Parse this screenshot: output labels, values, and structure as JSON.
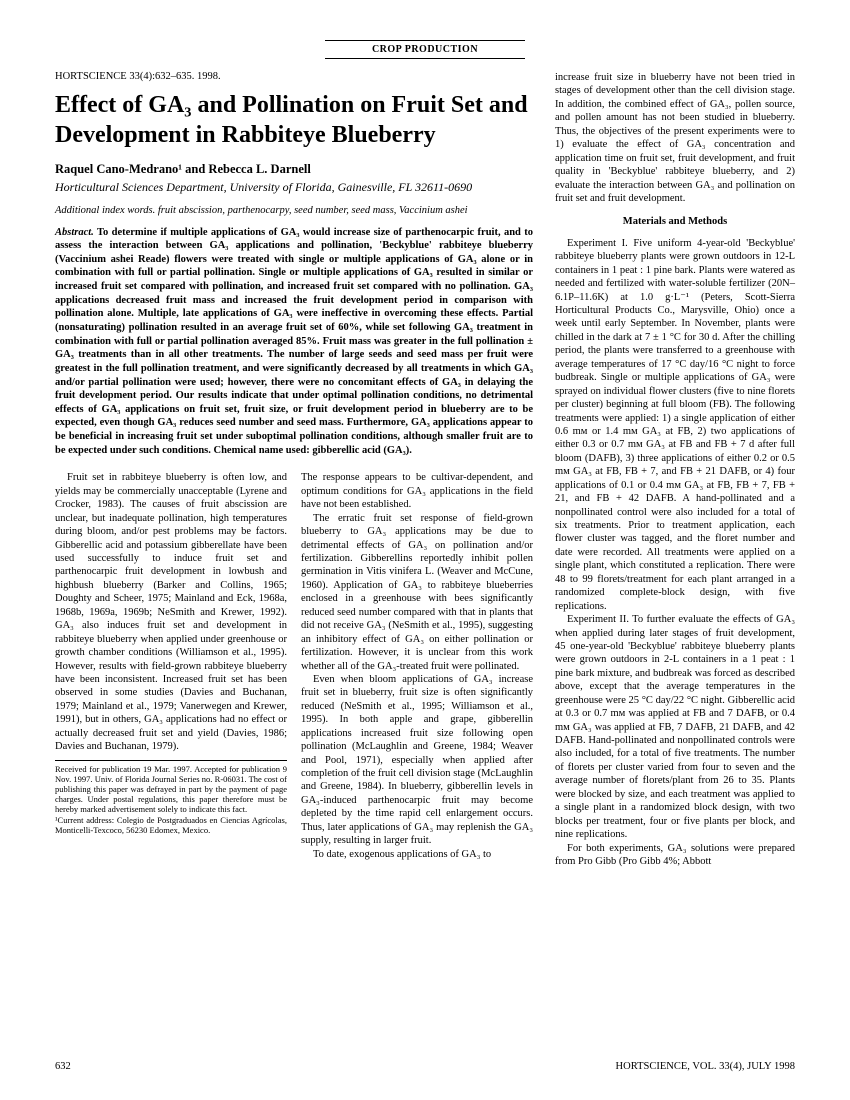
{
  "header_label": "CROP PRODUCTION",
  "citation": "HORTSCIENCE 33(4):632–635. 1998.",
  "title": "Effect of GA₃ and Pollination on Fruit Set and Development in Rabbiteye Blueberry",
  "authors": "Raquel Cano-Medrano¹ and Rebecca L. Darnell",
  "affiliation": "Horticultural Sciences Department, University of Florida, Gainesville, FL 32611-0690",
  "index_words_lead": "Additional index words.",
  "index_words": " fruit abscission, parthenocarpy, seed number, seed mass, Vaccinium ashei",
  "abstract_lead": "Abstract.",
  "abstract_body": " To determine if multiple applications of GA₃ would increase size of parthenocarpic fruit, and to assess the interaction between GA₃ applications and pollination, 'Beckyblue' rabbiteye blueberry (Vaccinium ashei Reade) flowers were treated with single or multiple applications of GA₃ alone or in combination with full or partial pollination. Single or multiple applications of GA₃ resulted in similar or increased fruit set compared with pollination, and increased fruit set compared with no pollination. GA₃ applications decreased fruit mass and increased the fruit development period in comparison with pollination alone. Multiple, late applications of GA₃ were ineffective in overcoming these effects. Partial (nonsaturating) pollination resulted in an average fruit set of 60%, while set following GA₃ treatment in combination with full or partial pollination averaged 85%. Fruit mass was greater in the full pollination ± GA₃ treatments than in all other treatments. The number of large seeds and seed mass per fruit were greatest in the full pollination treatment, and were significantly decreased by all treatments in which GA₃ and/or partial pollination were used; however, there were no concomitant effects of GA₃ in delaying the fruit development period. Our results indicate that under optimal pollination conditions, no detrimental effects of GA₃ applications on fruit set, fruit size, or fruit development period in blueberry are to be expected, even though GA₃ reduces seed number and seed mass. Furthermore, GA₃ applications appear to be beneficial in increasing fruit set under suboptimal pollination conditions, although smaller fruit are to be expected under such conditions. Chemical name used: gibberellic acid (GA₃).",
  "body_col1_p1": "Fruit set in rabbiteye blueberry is often low, and yields may be commercially unacceptable (Lyrene and Crocker, 1983). The causes of fruit abscission are unclear, but inadequate pollination, high temperatures during bloom, and/or pest problems may be factors. Gibberellic acid and potassium gibberellate have been used successfully to induce fruit set and parthenocarpic fruit development in lowbush and highbush blueberry (Barker and Collins, 1965; Doughty and Scheer, 1975; Mainland and Eck, 1968a, 1968b, 1969a, 1969b; NeSmith and Krewer, 1992). GA₃ also induces fruit set and development in rabbiteye blueberry when applied under greenhouse or growth chamber conditions (Williamson et al., 1995). However, results with field-grown rabbiteye blueberry have been inconsistent. Increased fruit set has been observed in some studies (Davies and Buchanan, 1979; Mainland et al., 1979; Vanerwegen and Krewer, 1991), but in others, GA₃ applications had no effect or actually decreased fruit set and yield (Davies, 1986; Davies and Buchanan, 1979).",
  "body_col2_p1": "The response appears to be cultivar-dependent, and optimum conditions for GA₃ applications in the field have not been established.",
  "body_col2_p2": "The erratic fruit set response of field-grown blueberry to GA₃ applications may be due to detrimental effects of GA₃ on pollination and/or fertilization. Gibberellins reportedly inhibit pollen germination in Vitis vinifera L. (Weaver and McCune, 1960). Application of GA₃ to rabbiteye blueberries enclosed in a greenhouse with bees significantly reduced seed number compared with that in plants that did not receive GA₃ (NeSmith et al., 1995), suggesting an inhibitory effect of GA₃ on either pollination or fertilization. However, it is unclear from this work whether all of the GA₃-treated fruit were pollinated.",
  "body_col2_p3": "Even when bloom applications of GA₃ increase fruit set in blueberry, fruit size is often significantly reduced (NeSmith et al., 1995; Williamson et al., 1995). In both apple and grape, gibberellin applications increased fruit size following open pollination (McLaughlin and Greene, 1984; Weaver and Pool, 1971), especially when applied after completion of the fruit cell division stage (McLaughlin and Greene, 1984). In blueberry, gibberellin levels in GA₃-induced parthenocarpic fruit may become depleted by the time rapid cell enlargement occurs. Thus, later applications of GA₃ may replenish the GA₃ supply, resulting in larger fruit.",
  "body_col2_p4": "To date, exogenous applications of GA₃ to",
  "footnote1": "Received for publication 19 Mar. 1997. Accepted for publication 9 Nov. 1997. Univ. of Florida Journal Series no. R-06031. The cost of publishing this paper was defrayed in part by the payment of page charges. Under postal regulations, this paper therefore must be hereby marked advertisement solely to indicate this fact.",
  "footnote2": "¹Current address: Colegio de Postgraduados en Ciencias Agrícolas, Monticelli-Texcoco, 56230 Edomex, Mexico.",
  "right_p1": "increase fruit size in blueberry have not been tried in stages of development other than the cell division stage. In addition, the combined effect of GA₃, pollen source, and pollen amount has not been studied in blueberry. Thus, the objectives of the present experiments were to 1) evaluate the effect of GA₃ concentration and application time on fruit set, fruit development, and fruit quality in 'Beckyblue' rabbiteye blueberry, and 2) evaluate the interaction between GA₃ and pollination on fruit set and fruit development.",
  "materials_head": "Materials and Methods",
  "right_p2": "Experiment I. Five uniform 4-year-old 'Beckyblue' rabbiteye blueberry plants were grown outdoors in 12-L containers in 1 peat : 1 pine bark. Plants were watered as needed and fertilized with water-soluble fertilizer (20N–6.1P–11.6K) at 1.0 g·L⁻¹ (Peters, Scott-Sierra Horticultural Products Co., Marysville, Ohio) once a week until early September. In November, plants were chilled in the dark at 7 ± 1 °C for 30 d. After the chilling period, the plants were transferred to a greenhouse with average temperatures of 17 °C day/16 °C night to force budbreak. Single or multiple applications of GA₃ were sprayed on individual flower clusters (five to nine florets per cluster) beginning at full bloom (FB). The following treatments were applied: 1) a single application of either 0.6 mᴍ or 1.4 mᴍ GA₃ at FB, 2) two applications of either 0.3 or 0.7 mᴍ GA₃ at FB and FB + 7 d after full bloom (DAFB), 3) three applications of either 0.2 or 0.5 mᴍ GA₃ at FB, FB + 7, and FB + 21 DAFB, or 4) four applications of 0.1 or 0.4 mᴍ GA₃ at FB, FB + 7, FB + 21, and FB + 42 DAFB. A hand-pollinated and a nonpollinated control were also included for a total of six treatments. Prior to treatment application, each flower cluster was tagged, and the floret number and date were recorded. All treatments were applied on a single plant, which constituted a replication. There were 48 to 99 florets/treatment for each plant arranged in a randomized complete-block design, with five replications.",
  "right_p3": "Experiment II. To further evaluate the effects of GA₃ when applied during later stages of fruit development, 45 one-year-old 'Beckyblue' rabbiteye blueberry plants were grown outdoors in 2-L containers in a 1 peat : 1 pine bark mixture, and budbreak was forced as described above, except that the average temperatures in the greenhouse were 25 °C day/22 °C night. Gibberellic acid at 0.3 or 0.7 mᴍ was applied at FB and 7 DAFB, or 0.4 mᴍ GA₃ was applied at FB, 7 DAFB, 21 DAFB, and 42 DAFB. Hand-pollinated and nonpollinated controls were also included, for a total of five treatments. The number of florets per cluster varied from four to seven and the average number of florets/plant from 26 to 35. Plants were blocked by size, and each treatment was applied to a single plant in a randomized block design, with two blocks per treatment, four or five plants per block, and nine replications.",
  "right_p4": "For both experiments, GA₃ solutions were prepared from Pro Gibb (Pro Gibb 4%; Abbott",
  "page_number": "632",
  "journal_footer": "HORTSCIENCE, VOL. 33(4), JULY 1998"
}
